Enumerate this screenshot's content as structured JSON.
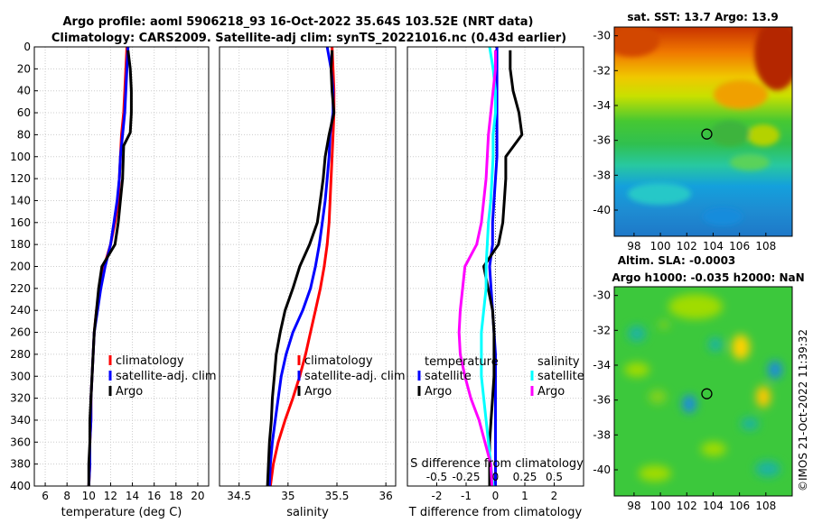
{
  "header": {
    "line1": "Argo profile: aoml 5906218_93 16-Oct-2022 35.64S 103.52E (NRT data)",
    "line2": "Climatology: CARS2009. Satellite-adj clim: synTS_20221016.nc (0.43d earlier)"
  },
  "copyright": "©IMOS 21-Oct-2022 11:39:32",
  "colors": {
    "climatology": "#ff0000",
    "satellite": "#0000ff",
    "argo": "#000000",
    "sal_satellite": "#00ffff",
    "sal_argo": "#ff00ff",
    "grid": "#c8c8c8"
  },
  "chart_data": [
    {
      "type": "line",
      "title": "",
      "xlabel": "temperature (deg C)",
      "ylabel": "",
      "xlim": [
        5,
        21
      ],
      "ylim": [
        400,
        0
      ],
      "xticks": [
        "6",
        "8",
        "10",
        "12",
        "14",
        "16",
        "18",
        "20"
      ],
      "xtick_values": [
        6,
        8,
        10,
        12,
        14,
        16,
        18,
        20
      ],
      "yticks": [
        "0",
        "20",
        "40",
        "60",
        "80",
        "100",
        "120",
        "140",
        "160",
        "180",
        "200",
        "220",
        "240",
        "260",
        "280",
        "300",
        "320",
        "340",
        "360",
        "380",
        "400"
      ],
      "ytick_values": [
        0,
        20,
        40,
        60,
        80,
        100,
        120,
        140,
        160,
        180,
        200,
        220,
        240,
        260,
        280,
        300,
        320,
        340,
        360,
        380,
        400
      ],
      "legend": [
        "climatology",
        "satellite-adj. clim",
        "Argo"
      ],
      "series": [
        {
          "name": "climatology",
          "color": "#ff0000",
          "x": [
            13.5,
            13.4,
            13.3,
            13.2,
            13.0,
            12.9,
            12.8,
            12.7,
            12.4,
            12.0,
            11.4,
            11.0,
            10.7,
            10.5,
            10.4,
            10.3,
            10.2,
            10.2,
            10.1,
            10.1,
            10.0
          ],
          "y": [
            0,
            20,
            40,
            60,
            80,
            100,
            120,
            140,
            160,
            180,
            200,
            220,
            240,
            260,
            280,
            300,
            320,
            340,
            360,
            380,
            400
          ]
        },
        {
          "name": "satellite-adj. clim",
          "color": "#0000ff",
          "x": [
            13.6,
            13.5,
            13.4,
            13.3,
            13.1,
            12.9,
            12.8,
            12.6,
            12.3,
            12.0,
            11.5,
            11.1,
            10.8,
            10.5,
            10.4,
            10.3,
            10.2,
            10.2,
            10.1,
            10.1,
            10.0
          ],
          "y": [
            0,
            20,
            40,
            60,
            80,
            100,
            120,
            140,
            160,
            180,
            200,
            220,
            240,
            260,
            280,
            300,
            320,
            340,
            360,
            380,
            400
          ]
        },
        {
          "name": "Argo",
          "color": "#000000",
          "x": [
            13.6,
            13.8,
            13.9,
            13.9,
            13.8,
            13.2,
            13.1,
            12.9,
            12.7,
            12.4,
            11.2,
            10.9,
            10.7,
            10.5,
            10.4,
            10.3,
            10.2,
            10.1,
            10.1,
            10.0,
            10.0
          ],
          "y": [
            3,
            20,
            40,
            60,
            78,
            90,
            120,
            140,
            160,
            180,
            200,
            220,
            240,
            260,
            280,
            300,
            320,
            340,
            360,
            380,
            400
          ]
        }
      ]
    },
    {
      "type": "line",
      "title": "",
      "xlabel": "salinity",
      "ylabel": "",
      "xlim": [
        34.3,
        36.1
      ],
      "ylim": [
        400,
        0
      ],
      "xticks": [
        "34.5",
        "35",
        "35.5",
        "36"
      ],
      "xtick_values": [
        34.5,
        35,
        35.5,
        36
      ],
      "legend": [
        "climatology",
        "satellite-adj. clim",
        "Argo"
      ],
      "series": [
        {
          "name": "climatology",
          "color": "#ff0000",
          "x": [
            35.45,
            35.46,
            35.47,
            35.47,
            35.46,
            35.45,
            35.44,
            35.43,
            35.42,
            35.4,
            35.37,
            35.33,
            35.28,
            35.23,
            35.18,
            35.12,
            35.05,
            34.97,
            34.9,
            34.85,
            34.82
          ],
          "y": [
            0,
            20,
            40,
            60,
            80,
            100,
            120,
            140,
            160,
            180,
            200,
            220,
            240,
            260,
            280,
            300,
            320,
            340,
            360,
            380,
            400
          ]
        },
        {
          "name": "satellite-adj. clim",
          "color": "#0000ff",
          "x": [
            35.4,
            35.44,
            35.46,
            35.46,
            35.43,
            35.42,
            35.4,
            35.38,
            35.35,
            35.32,
            35.28,
            35.23,
            35.15,
            35.05,
            34.98,
            34.93,
            34.9,
            34.87,
            34.84,
            34.82,
            34.81
          ],
          "y": [
            0,
            20,
            40,
            60,
            80,
            100,
            120,
            140,
            160,
            180,
            200,
            220,
            240,
            260,
            280,
            300,
            320,
            340,
            360,
            380,
            400
          ]
        },
        {
          "name": "Argo",
          "color": "#000000",
          "x": [
            35.45,
            35.44,
            35.45,
            35.47,
            35.42,
            35.38,
            35.36,
            35.33,
            35.3,
            35.22,
            35.12,
            35.05,
            34.97,
            34.92,
            34.88,
            34.86,
            34.84,
            34.83,
            34.81,
            34.8,
            34.79
          ],
          "y": [
            3,
            20,
            40,
            60,
            80,
            100,
            120,
            140,
            160,
            180,
            200,
            220,
            240,
            260,
            280,
            300,
            320,
            340,
            360,
            380,
            400
          ]
        }
      ]
    },
    {
      "type": "line",
      "title": "",
      "xlabel": "T difference from climatology",
      "ylabel": "",
      "xlim": [
        -3,
        3
      ],
      "ylim": [
        400,
        0
      ],
      "xticks": [
        "-2",
        "-1",
        "0",
        "1",
        "2"
      ],
      "xtick_values": [
        -2,
        -1,
        0,
        1,
        2
      ],
      "secondary_xlabel": "S difference from climatology",
      "secondary_xticks": [
        "-0.5",
        "-0.25",
        "0",
        "0.25",
        "0.5"
      ],
      "secondary_xtick_values": [
        -0.5,
        -0.25,
        0,
        0.25,
        0.5
      ],
      "secondary_xlim": [
        -0.75,
        0.75
      ],
      "legend_temperature_title": "temperature",
      "legend_salinity_title": "salinity",
      "legend": [
        "satellite",
        "Argo",
        "satellite",
        "Argo"
      ],
      "series": [
        {
          "name": "temperature satellite",
          "color": "#0000ff",
          "axis": "T",
          "x": [
            0.05,
            0.05,
            0.05,
            0.05,
            0.05,
            0.05,
            0.0,
            -0.05,
            -0.1,
            -0.1,
            -0.2,
            -0.15,
            -0.1,
            -0.05,
            0.0,
            0.0,
            0.0,
            0.0,
            0.0,
            0.0,
            0.0
          ],
          "y": [
            0,
            20,
            40,
            60,
            80,
            100,
            120,
            140,
            160,
            180,
            200,
            220,
            240,
            260,
            280,
            300,
            320,
            340,
            360,
            380,
            400
          ]
        },
        {
          "name": "temperature Argo",
          "color": "#000000",
          "axis": "T",
          "x": [
            0.5,
            0.5,
            0.6,
            0.8,
            0.9,
            0.35,
            0.35,
            0.3,
            0.25,
            0.1,
            -0.4,
            -0.25,
            -0.1,
            -0.05,
            -0.05,
            -0.05,
            -0.1,
            -0.15,
            -0.2,
            -0.2,
            -0.2
          ],
          "y": [
            3,
            20,
            40,
            60,
            80,
            100,
            120,
            140,
            160,
            180,
            200,
            220,
            240,
            260,
            280,
            300,
            320,
            340,
            360,
            380,
            400
          ]
        },
        {
          "name": "salinity satellite",
          "color": "#00ffff",
          "axis": "S",
          "x": [
            -0.05,
            -0.02,
            0.0,
            0.0,
            -0.02,
            -0.02,
            -0.03,
            -0.04,
            -0.06,
            -0.07,
            -0.08,
            -0.08,
            -0.1,
            -0.12,
            -0.12,
            -0.12,
            -0.1,
            -0.08,
            -0.06,
            -0.04,
            -0.02
          ],
          "y": [
            0,
            20,
            40,
            60,
            80,
            100,
            120,
            140,
            160,
            180,
            200,
            220,
            240,
            260,
            280,
            300,
            320,
            340,
            360,
            380,
            400
          ]
        },
        {
          "name": "salinity Argo",
          "color": "#ff00ff",
          "axis": "S",
          "x": [
            0.0,
            0.0,
            -0.02,
            -0.04,
            -0.06,
            -0.07,
            -0.08,
            -0.1,
            -0.12,
            -0.16,
            -0.26,
            -0.28,
            -0.3,
            -0.31,
            -0.3,
            -0.26,
            -0.21,
            -0.14,
            -0.09,
            -0.04,
            -0.03
          ],
          "y": [
            3,
            20,
            40,
            60,
            80,
            100,
            120,
            140,
            160,
            180,
            200,
            220,
            240,
            260,
            280,
            300,
            320,
            340,
            360,
            380,
            400
          ]
        }
      ]
    },
    {
      "type": "heatmap",
      "title": "sat. SST: 13.7 Argo: 13.9",
      "xlim": [
        96.5,
        110
      ],
      "ylim": [
        -41.5,
        -29.5
      ],
      "xticks": [
        "98",
        "100",
        "102",
        "104",
        "106",
        "108"
      ],
      "xtick_values": [
        98,
        100,
        102,
        104,
        106,
        108
      ],
      "yticks": [
        "-30",
        "-32",
        "-34",
        "-36",
        "-38",
        "-40"
      ],
      "ytick_values": [
        -30,
        -32,
        -34,
        -36,
        -38,
        -40
      ],
      "marker": {
        "lon": 103.52,
        "lat": -35.64
      }
    },
    {
      "type": "heatmap",
      "title_line1": "Altim. SLA: -0.0003",
      "title_line2": "Argo h1000: -0.035 h2000: NaN",
      "xlim": [
        96.5,
        110
      ],
      "ylim": [
        -41.5,
        -29.5
      ],
      "xticks": [
        "98",
        "100",
        "102",
        "104",
        "106",
        "108"
      ],
      "xtick_values": [
        98,
        100,
        102,
        104,
        106,
        108
      ],
      "yticks": [
        "-30",
        "-32",
        "-34",
        "-36",
        "-38",
        "-40"
      ],
      "ytick_values": [
        -30,
        -32,
        -34,
        -36,
        -38,
        -40
      ],
      "marker": {
        "lon": 103.52,
        "lat": -35.64
      }
    }
  ]
}
